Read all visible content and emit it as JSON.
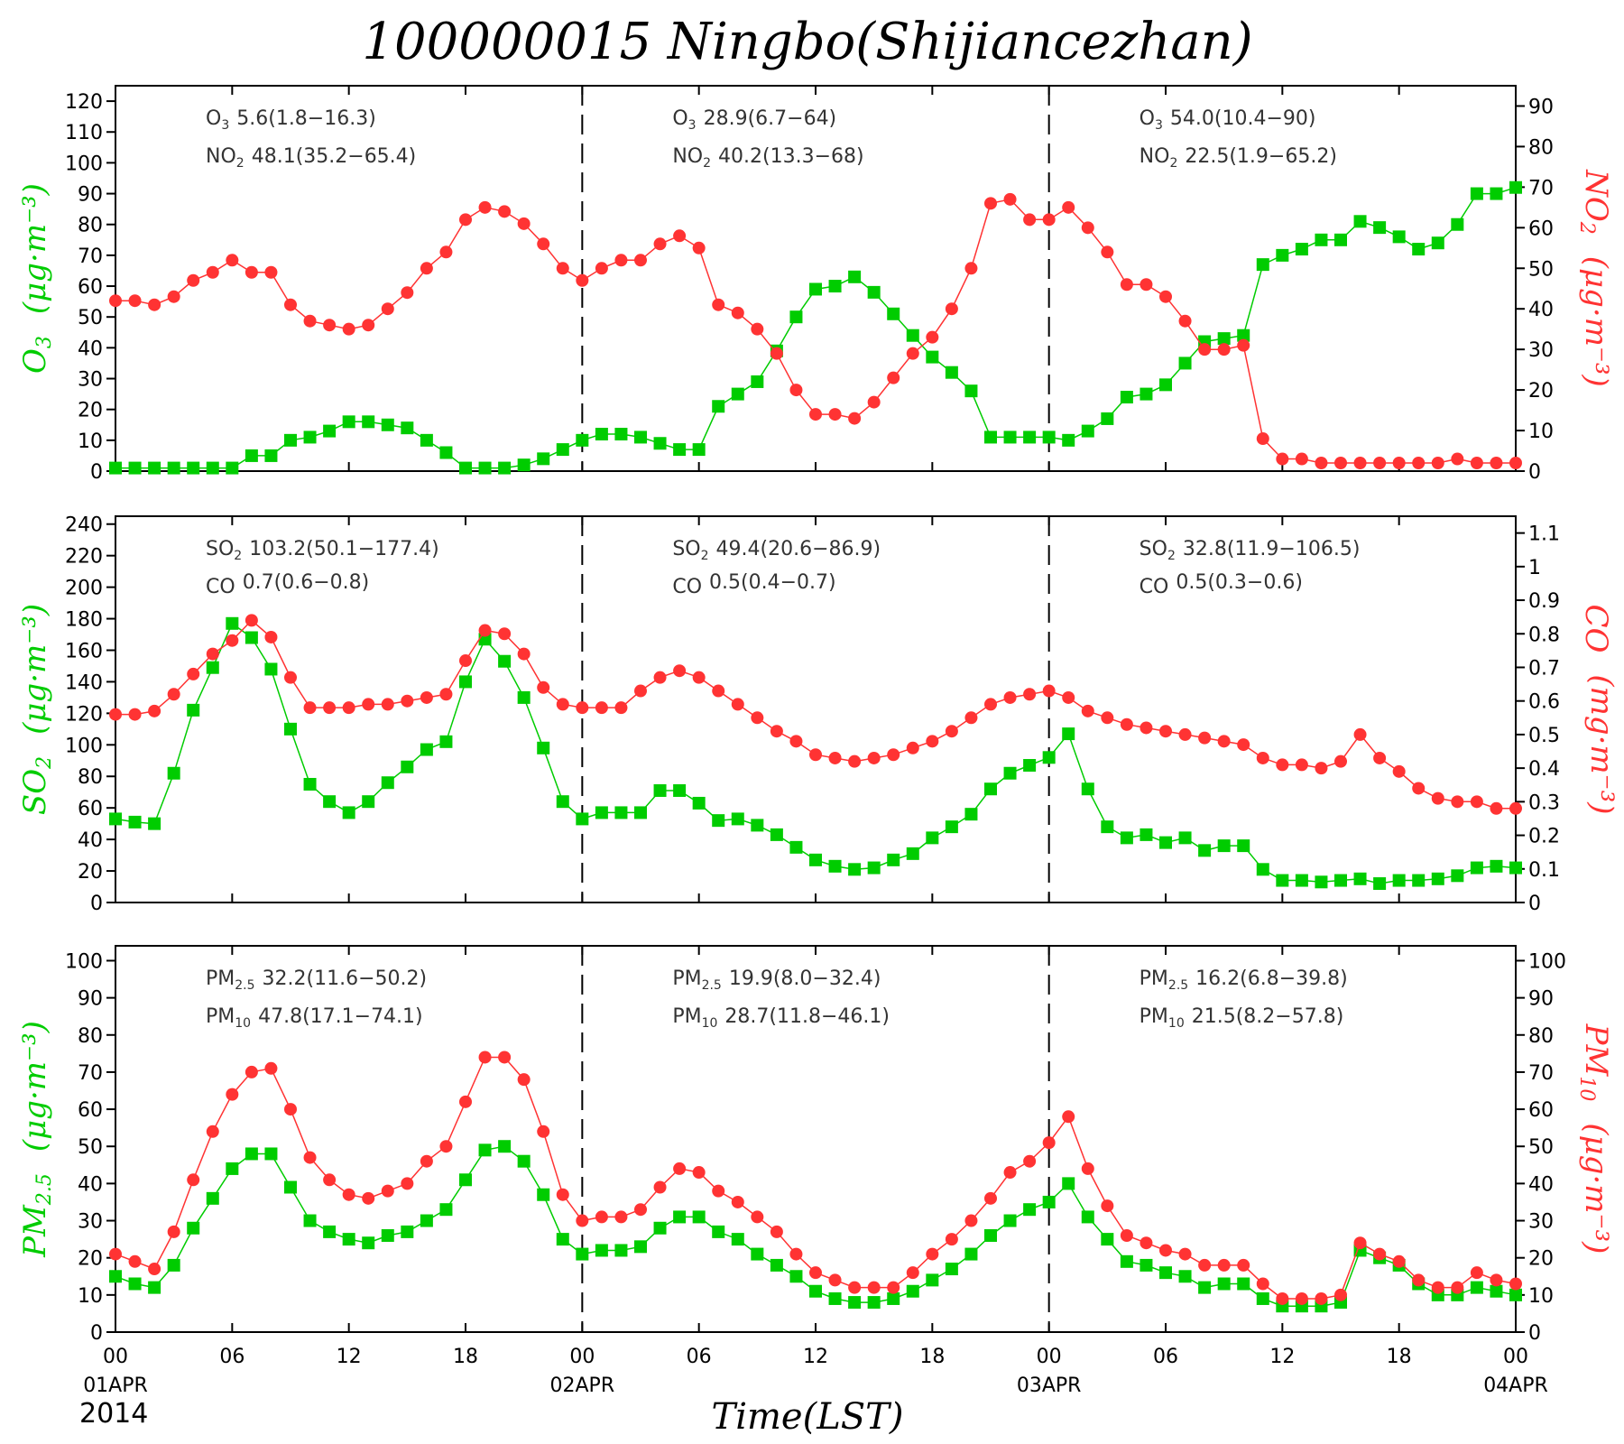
{
  "title": "100000015 Ningbo(Shijiancezhan)",
  "year": "2014",
  "xlabel": "Time(LST)",
  "x_tick_labels": [
    "00",
    "06",
    "12",
    "18",
    "00",
    "06",
    "12",
    "18",
    "00",
    "06",
    "12",
    "18",
    "00"
  ],
  "date_labels": [
    "01APR",
    "02APR",
    "03APR",
    "04APR"
  ],
  "colors": {
    "left_series": "#00cc00",
    "right_series": "#ff3333",
    "frame": "#000000"
  },
  "chart_data": [
    {
      "type": "line",
      "x": "hour index 0-72 (01APR 00 LST to 04APR 00 LST)",
      "left_axis": {
        "label": "O",
        "label_sub": "3",
        "unit": "(μg·m⁻³)",
        "ylim": [
          0,
          125
        ],
        "ticks": [
          0,
          10,
          20,
          30,
          40,
          50,
          60,
          70,
          80,
          90,
          100,
          110,
          120
        ]
      },
      "right_axis": {
        "label": "NO",
        "label_sub": "2",
        "unit": "(μg·m⁻³)",
        "ylim": [
          0,
          95
        ],
        "ticks": [
          0,
          10,
          20,
          30,
          40,
          50,
          60,
          70,
          80,
          90
        ]
      },
      "stats": [
        [
          {
            "name": "O",
            "sub": "3",
            "value": "5.6(1.8−16.3)"
          },
          {
            "name": "NO",
            "sub": "2",
            "value": "48.1(35.2−65.4)"
          }
        ],
        [
          {
            "name": "O",
            "sub": "3",
            "value": "28.9(6.7−64)"
          },
          {
            "name": "NO",
            "sub": "2",
            "value": "40.2(13.3−68)"
          }
        ],
        [
          {
            "name": "O",
            "sub": "3",
            "value": "54.0(10.4−90)"
          },
          {
            "name": "NO",
            "sub": "2",
            "value": "22.5(1.9−65.2)"
          }
        ]
      ],
      "series": [
        {
          "name": "O3",
          "axis": "left",
          "marker": "square",
          "values": [
            1,
            1,
            1,
            1,
            1,
            1,
            1,
            5,
            5,
            10,
            11,
            13,
            16,
            16,
            15,
            14,
            10,
            6,
            1,
            1,
            1,
            2,
            4,
            7,
            10,
            12,
            12,
            11,
            9,
            7,
            7,
            21,
            25,
            29,
            39,
            50,
            59,
            60,
            63,
            58,
            51,
            44,
            37,
            32,
            26,
            11,
            11,
            11,
            11,
            10,
            13,
            17,
            24,
            25,
            28,
            35,
            42,
            43,
            44,
            67,
            70,
            72,
            75,
            75,
            81,
            79,
            76,
            72,
            74,
            80,
            90,
            90,
            92
          ]
        },
        {
          "name": "NO2",
          "axis": "right",
          "marker": "circle",
          "values": [
            42,
            42,
            41,
            43,
            47,
            49,
            52,
            49,
            49,
            41,
            37,
            36,
            35,
            36,
            40,
            44,
            50,
            54,
            62,
            65,
            64,
            61,
            56,
            50,
            47,
            50,
            52,
            52,
            56,
            58,
            55,
            41,
            39,
            35,
            29,
            20,
            14,
            14,
            13,
            17,
            23,
            29,
            33,
            40,
            50,
            66,
            67,
            62,
            62,
            65,
            60,
            54,
            46,
            46,
            43,
            37,
            30,
            30,
            31,
            8,
            3,
            3,
            2,
            2,
            2,
            2,
            2,
            2,
            2,
            3,
            2,
            2,
            2
          ]
        }
      ]
    },
    {
      "type": "line",
      "x": "hour index 0-72 (01APR 00 LST to 04APR 00 LST)",
      "left_axis": {
        "label": "SO",
        "label_sub": "2",
        "unit": "(μg·m⁻³)",
        "ylim": [
          0,
          245
        ],
        "ticks": [
          0,
          20,
          40,
          60,
          80,
          100,
          120,
          140,
          160,
          180,
          200,
          220,
          240
        ]
      },
      "right_axis": {
        "label": "CO",
        "label_sub": "",
        "unit": "(mg·m⁻³)",
        "ylim": [
          0,
          1.15
        ],
        "ticks": [
          0,
          0.1,
          0.2,
          0.3,
          0.4,
          0.5,
          0.6,
          0.7,
          0.8,
          0.9,
          1,
          1.1
        ]
      },
      "stats": [
        [
          {
            "name": "SO",
            "sub": "2",
            "value": "103.2(50.1−177.4)"
          },
          {
            "name": "CO",
            "sub": "",
            "value": "0.7(0.6−0.8)"
          }
        ],
        [
          {
            "name": "SO",
            "sub": "2",
            "value": "49.4(20.6−86.9)"
          },
          {
            "name": "CO",
            "sub": "",
            "value": "0.5(0.4−0.7)"
          }
        ],
        [
          {
            "name": "SO",
            "sub": "2",
            "value": "32.8(11.9−106.5)"
          },
          {
            "name": "CO",
            "sub": "",
            "value": "0.5(0.3−0.6)"
          }
        ]
      ],
      "series": [
        {
          "name": "SO2",
          "axis": "left",
          "marker": "square",
          "values": [
            53,
            51,
            50,
            82,
            122,
            149,
            177,
            168,
            148,
            110,
            75,
            64,
            57,
            64,
            76,
            86,
            97,
            102,
            140,
            167,
            153,
            130,
            98,
            64,
            53,
            57,
            57,
            57,
            71,
            71,
            63,
            52,
            53,
            49,
            43,
            35,
            27,
            23,
            21,
            22,
            27,
            31,
            41,
            48,
            56,
            72,
            82,
            87,
            92,
            107,
            72,
            48,
            41,
            43,
            38,
            41,
            33,
            36,
            36,
            21,
            14,
            14,
            13,
            14,
            15,
            12,
            14,
            14,
            15,
            17,
            22,
            23,
            22
          ]
        },
        {
          "name": "CO",
          "axis": "right",
          "marker": "circle",
          "values": [
            0.56,
            0.56,
            0.57,
            0.62,
            0.68,
            0.74,
            0.78,
            0.84,
            0.79,
            0.67,
            0.58,
            0.58,
            0.58,
            0.59,
            0.59,
            0.6,
            0.61,
            0.62,
            0.72,
            0.81,
            0.8,
            0.74,
            0.64,
            0.59,
            0.58,
            0.58,
            0.58,
            0.63,
            0.67,
            0.69,
            0.67,
            0.63,
            0.59,
            0.55,
            0.51,
            0.48,
            0.44,
            0.43,
            0.42,
            0.43,
            0.44,
            0.46,
            0.48,
            0.51,
            0.55,
            0.59,
            0.61,
            0.62,
            0.63,
            0.61,
            0.57,
            0.55,
            0.53,
            0.52,
            0.51,
            0.5,
            0.49,
            0.48,
            0.47,
            0.43,
            0.41,
            0.41,
            0.4,
            0.42,
            0.5,
            0.43,
            0.39,
            0.34,
            0.31,
            0.3,
            0.3,
            0.28,
            0.28
          ]
        }
      ]
    },
    {
      "type": "line",
      "x": "hour index 0-72 (01APR 00 LST to 04APR 00 LST)",
      "left_axis": {
        "label": "PM",
        "label_sub": "2.5",
        "unit": "(μg·m⁻³)",
        "ylim": [
          0,
          104
        ],
        "ticks": [
          0,
          10,
          20,
          30,
          40,
          50,
          60,
          70,
          80,
          90,
          100
        ]
      },
      "right_axis": {
        "label": "PM",
        "label_sub": "10",
        "unit": "(μg·m⁻³)",
        "ylim": [
          0,
          104
        ],
        "ticks": [
          0,
          10,
          20,
          30,
          40,
          50,
          60,
          70,
          80,
          90,
          100
        ]
      },
      "stats": [
        [
          {
            "name": "PM",
            "sub": "2.5",
            "value": "32.2(11.6−50.2)"
          },
          {
            "name": "PM",
            "sub": "10",
            "value": "47.8(17.1−74.1)"
          }
        ],
        [
          {
            "name": "PM",
            "sub": "2.5",
            "value": "19.9(8.0−32.4)"
          },
          {
            "name": "PM",
            "sub": "10",
            "value": "28.7(11.8−46.1)"
          }
        ],
        [
          {
            "name": "PM",
            "sub": "2.5",
            "value": "16.2(6.8−39.8)"
          },
          {
            "name": "PM",
            "sub": "10",
            "value": "21.5(8.2−57.8)"
          }
        ]
      ],
      "series": [
        {
          "name": "PM2.5",
          "axis": "left",
          "marker": "square",
          "values": [
            15,
            13,
            12,
            18,
            28,
            36,
            44,
            48,
            48,
            39,
            30,
            27,
            25,
            24,
            26,
            27,
            30,
            33,
            41,
            49,
            50,
            46,
            37,
            25,
            21,
            22,
            22,
            23,
            28,
            31,
            31,
            27,
            25,
            21,
            18,
            15,
            11,
            9,
            8,
            8,
            9,
            11,
            14,
            17,
            21,
            26,
            30,
            33,
            35,
            40,
            31,
            25,
            19,
            18,
            16,
            15,
            12,
            13,
            13,
            9,
            7,
            7,
            7,
            8,
            22,
            20,
            18,
            13,
            10,
            10,
            12,
            11,
            10
          ]
        },
        {
          "name": "PM10",
          "axis": "right",
          "marker": "circle",
          "values": [
            21,
            19,
            17,
            27,
            41,
            54,
            64,
            70,
            71,
            60,
            47,
            41,
            37,
            36,
            38,
            40,
            46,
            50,
            62,
            74,
            74,
            68,
            54,
            37,
            30,
            31,
            31,
            33,
            39,
            44,
            43,
            38,
            35,
            31,
            27,
            21,
            16,
            14,
            12,
            12,
            12,
            16,
            21,
            25,
            30,
            36,
            43,
            46,
            51,
            58,
            44,
            34,
            26,
            24,
            22,
            21,
            18,
            18,
            18,
            13,
            9,
            9,
            9,
            10,
            24,
            21,
            19,
            14,
            12,
            12,
            16,
            14,
            13
          ]
        }
      ]
    }
  ]
}
